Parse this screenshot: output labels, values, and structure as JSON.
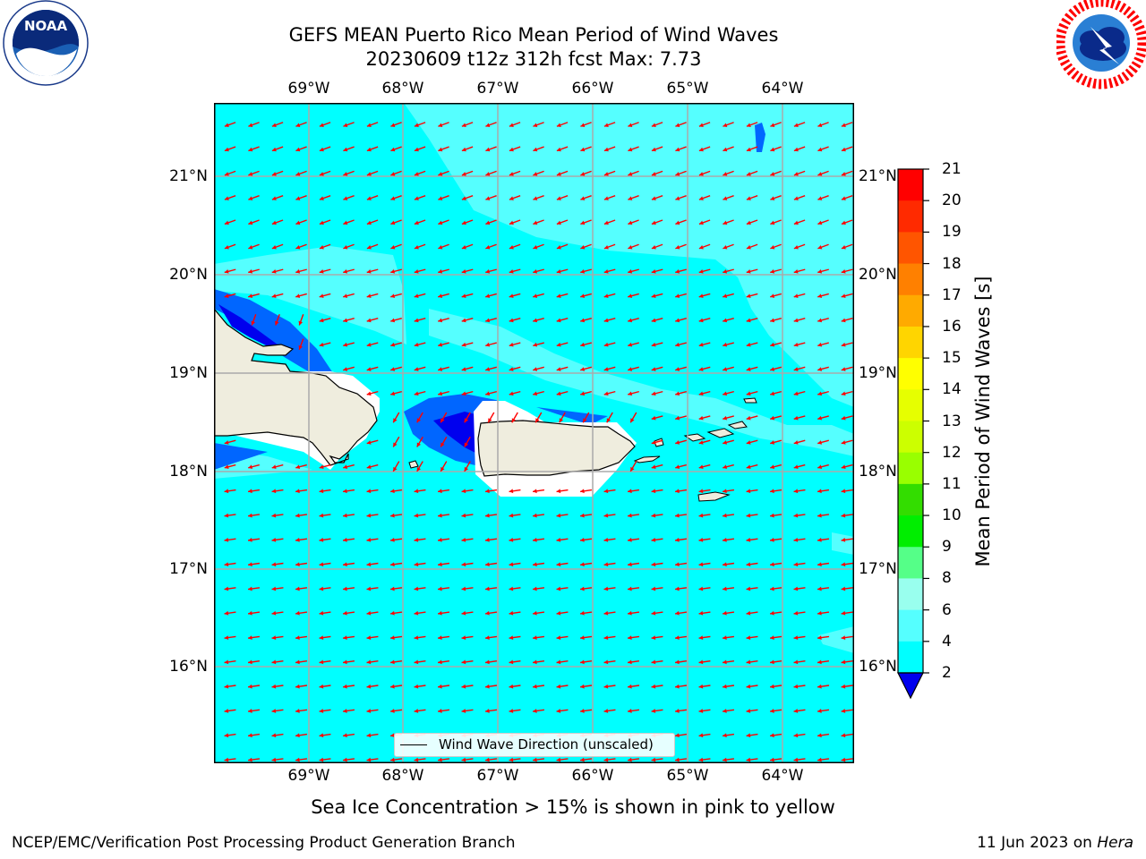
{
  "title_line1": "GEFS MEAN Puerto Rico Mean Period of Wind Waves",
  "title_line2": "20230609 t12z 312h fcst   Max: 7.73",
  "lon_labels": [
    "69°W",
    "68°W",
    "67°W",
    "66°W",
    "65°W",
    "64°W"
  ],
  "lat_labels": [
    "21°N",
    "20°N",
    "19°N",
    "18°N",
    "17°N",
    "16°N"
  ],
  "legend_label": "Wind Wave Direction (unscaled)",
  "colorbar": {
    "label": "Mean Period of Wind Waves [s]",
    "ticks": [
      "21",
      "20",
      "19",
      "18",
      "17",
      "16",
      "15",
      "14",
      "13",
      "12",
      "11",
      "10",
      "9",
      "8",
      "6",
      "4",
      "2"
    ],
    "colors": [
      "#ff0000",
      "#ff2a00",
      "#ff5500",
      "#ff8000",
      "#ffaa00",
      "#ffd500",
      "#ffff00",
      "#e6ff00",
      "#ccff00",
      "#99ff00",
      "#33dd00",
      "#00ee00",
      "#55ff88",
      "#99ffee",
      "#55ffff",
      "#00ffff",
      "#0066ff"
    ],
    "under_color": "#0000ee"
  },
  "subtitle": "Sea Ice Concentration > 15% is shown in pink to yellow",
  "footer_left": "NCEP/EMC/Verification Post Processing Product Generation Branch",
  "footer_right_date": "11 Jun 2023 on",
  "footer_right_host": "Hera",
  "logos": {
    "noaa_text": "NOAA",
    "noaa_ring_text": "NATIONAL OCEANIC AND ATMOSPHERIC ADMINISTRATION · U.S. DEPARTMENT OF COMMERCE",
    "nws_ring_text": "NATIONAL WEATHER SERVICE"
  },
  "colors": {
    "ocean_main": "#00ffff",
    "ocean_light": "#55ffff",
    "ocean_lighter": "#99ffee",
    "shallow_blue": "#0066ff",
    "deep_blue": "#0000ee",
    "land": "#efedde",
    "arrow": "#ff0000",
    "grid": "#aaaaaa"
  }
}
